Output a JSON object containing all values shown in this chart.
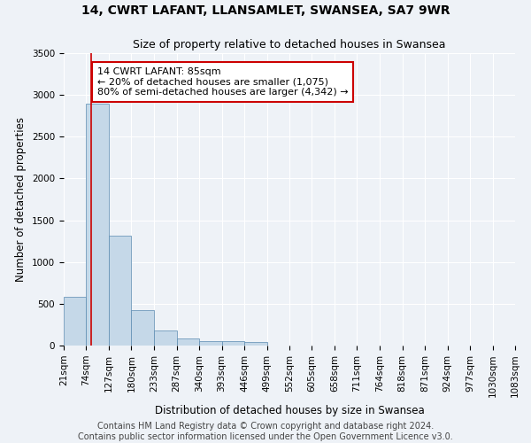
{
  "title": "14, CWRT LAFANT, LLANSAMLET, SWANSEA, SA7 9WR",
  "subtitle": "Size of property relative to detached houses in Swansea",
  "xlabel": "Distribution of detached houses by size in Swansea",
  "ylabel": "Number of detached properties",
  "bin_edges": [
    21,
    74,
    127,
    180,
    233,
    287,
    340,
    393,
    446,
    499,
    552,
    605,
    658,
    711,
    764,
    818,
    871,
    924,
    977,
    1030,
    1083
  ],
  "bar_heights": [
    580,
    2900,
    1320,
    420,
    185,
    80,
    55,
    50,
    45,
    0,
    0,
    0,
    0,
    0,
    0,
    0,
    0,
    0,
    0,
    0
  ],
  "bar_color": "#c5d8e8",
  "bar_edgecolor": "#5a8ab0",
  "property_size": 85,
  "red_line_color": "#cc0000",
  "annotation_text": "14 CWRT LAFANT: 85sqm\n← 20% of detached houses are smaller (1,075)\n80% of semi-detached houses are larger (4,342) →",
  "annotation_box_edgecolor": "#cc0000",
  "annotation_box_facecolor": "#ffffff",
  "ylim": [
    0,
    3500
  ],
  "yticks": [
    0,
    500,
    1000,
    1500,
    2000,
    2500,
    3000,
    3500
  ],
  "footer_line1": "Contains HM Land Registry data © Crown copyright and database right 2024.",
  "footer_line2": "Contains public sector information licensed under the Open Government Licence v3.0.",
  "background_color": "#eef2f7",
  "plot_background_color": "#eef2f7",
  "grid_color": "#ffffff",
  "title_fontsize": 10,
  "subtitle_fontsize": 9,
  "axis_label_fontsize": 8.5,
  "tick_fontsize": 7.5,
  "annotation_fontsize": 8,
  "footer_fontsize": 7
}
